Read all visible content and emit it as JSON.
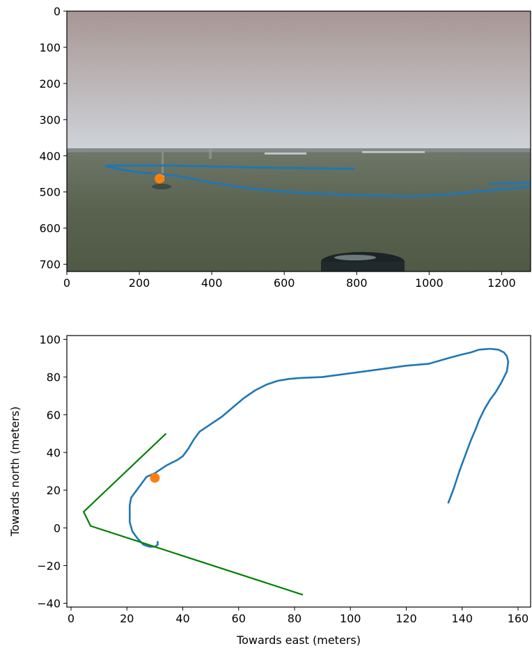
{
  "colors": {
    "trajectory": "#1f77b4",
    "marker": "#ff7f0e",
    "fov": "#008000",
    "sky_top": "#a89694",
    "sky_bottom": "#cfd4da",
    "sea": "#59624f"
  },
  "chart_data": [
    {
      "type": "image",
      "xlim": [
        0,
        1280
      ],
      "ylim": [
        720,
        0
      ],
      "xticks": [
        "0",
        "200",
        "400",
        "600",
        "800",
        "1000",
        "1200"
      ],
      "yticks": [
        "0",
        "100",
        "200",
        "300",
        "400",
        "500",
        "600",
        "700"
      ],
      "horizon_y": 418,
      "series": [
        {
          "points": [
            [
              105,
              428
            ],
            [
              150,
              438
            ],
            [
              200,
              446
            ],
            [
              300,
              455
            ],
            [
              400,
              474
            ],
            [
              500,
              490
            ],
            [
              650,
              503
            ],
            [
              800,
              509
            ],
            [
              950,
              512
            ],
            [
              1050,
              507
            ],
            [
              1150,
              497
            ],
            [
              1230,
              490
            ],
            [
              1280,
              485
            ]
          ]
        },
        {
          "points": [
            [
              110,
              427
            ],
            [
              300,
              427
            ],
            [
              500,
              432
            ],
            [
              700,
              435
            ],
            [
              795,
              436
            ]
          ]
        },
        {
          "points": [
            [
              1165,
              478
            ],
            [
              1220,
              476
            ],
            [
              1280,
              474
            ]
          ]
        }
      ],
      "marker": [
        256,
        463
      ]
    },
    {
      "type": "line",
      "xlabel": "Towards east (meters)",
      "ylabel": "Towards north (meters)",
      "xlim": [
        -1.5,
        164.5
      ],
      "ylim": [
        -42,
        102
      ],
      "xticks": [
        "0",
        "20",
        "40",
        "60",
        "80",
        "100",
        "120",
        "140",
        "160"
      ],
      "yticks": [
        "−40",
        "−20",
        "0",
        "20",
        "40",
        "60",
        "80",
        "100"
      ],
      "series": [
        {
          "x": [
            31,
            31,
            30,
            30,
            28,
            26,
            24,
            22,
            21,
            21,
            21,
            21.5,
            23,
            25,
            27,
            30,
            34,
            38,
            40,
            42,
            44,
            46,
            50,
            54,
            58,
            62,
            66,
            70,
            74,
            78,
            82,
            90,
            100,
            110,
            120,
            128,
            135,
            140,
            143,
            146,
            150,
            153,
            155,
            156,
            156.5,
            156,
            154,
            152,
            150,
            148,
            146,
            145,
            143,
            141,
            139,
            137,
            135
          ],
          "y": [
            -7,
            -9,
            -10,
            -10,
            -10,
            -9,
            -6,
            -2,
            3,
            8,
            12,
            16,
            19,
            23,
            27,
            29,
            33,
            36,
            38,
            42,
            47,
            51,
            55,
            59,
            64,
            69,
            73,
            76,
            78,
            79,
            79.5,
            80,
            82,
            84,
            86,
            87,
            90,
            92,
            93,
            94.5,
            95,
            94.5,
            93,
            91,
            88,
            83,
            77,
            72,
            68,
            63,
            57,
            53,
            46,
            38,
            30,
            21,
            13
          ]
        },
        {
          "x": [
            34,
            4.5,
            7,
            83
          ],
          "y": [
            50,
            8.5,
            1,
            -35.5
          ]
        }
      ],
      "marker": [
        30,
        26.5
      ]
    }
  ]
}
